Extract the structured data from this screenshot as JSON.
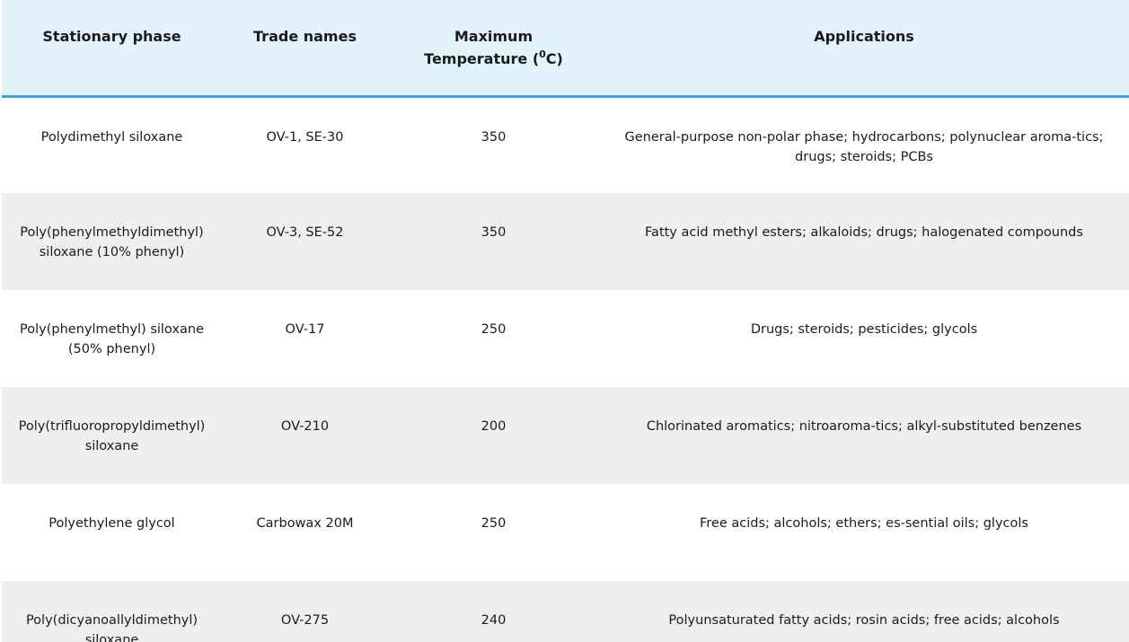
{
  "table": {
    "headers": {
      "stationary_phase": "Stationary phase",
      "trade_names": "Trade names",
      "max_temp_line1": "Maximum",
      "max_temp_line2_prefix": "Temperature (",
      "max_temp_sup": "0",
      "max_temp_suffix": "C)",
      "applications": "Applications"
    },
    "rows": [
      {
        "phase": "Polydimethyl siloxane",
        "trade": "OV-1, SE-30",
        "temp": "350",
        "applications": "General-purpose non-polar phase; hydrocarbons; polynuclear aroma-tics; drugs; steroids; PCBs"
      },
      {
        "phase": "Poly(phenylmethyldimethyl) siloxane (10% phenyl)",
        "trade": "OV-3, SE-52",
        "temp": "350",
        "applications": "Fatty acid methyl esters; alkaloids; drugs; halogenated compounds"
      },
      {
        "phase": "Poly(phenylmethyl) siloxane (50% phenyl)",
        "trade": "OV-17",
        "temp": "250",
        "applications": "Drugs; steroids; pesticides; glycols"
      },
      {
        "phase": "Poly(trifluoropropyldimethyl) siloxane",
        "trade": "OV-210",
        "temp": "200",
        "applications": "Chlorinated aromatics; nitroaroma-tics; alkyl-substituted benzenes"
      },
      {
        "phase": "Polyethylene glycol",
        "trade": "Carbowax 20M",
        "temp": "250",
        "applications": "Free acids; alcohols; ethers; es-sential oils; glycols"
      },
      {
        "phase": "Poly(dicyanoallyldimethyl) siloxane",
        "trade": "OV-275",
        "temp": "240",
        "applications": "Polyunsaturated fatty acids; rosin acids; free acids; alcohols"
      }
    ]
  }
}
